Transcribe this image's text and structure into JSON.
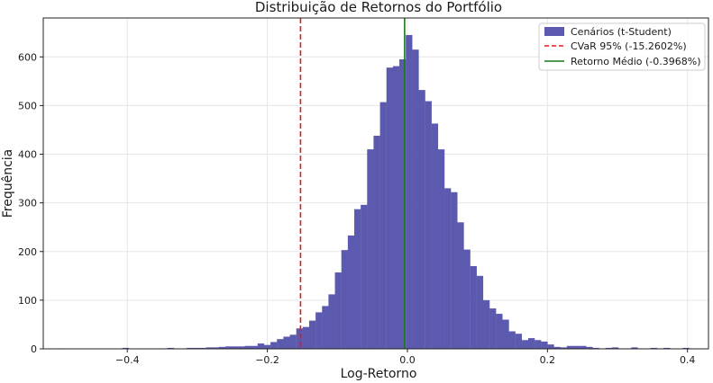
{
  "chart_data": {
    "type": "bar",
    "title": "Distribuição de Retornos do Portfólio",
    "xlabel": "Log-Retorno",
    "ylabel": "Frequência",
    "xlim": [
      -0.52,
      0.43
    ],
    "ylim": [
      0,
      680
    ],
    "xticks": [
      -0.4,
      -0.2,
      0.0,
      0.2,
      0.4
    ],
    "xtick_labels": [
      "−0.4",
      "−0.2",
      "0.0",
      "0.2",
      "0.4"
    ],
    "yticks": [
      0,
      100,
      200,
      300,
      400,
      500,
      600
    ],
    "ytick_labels": [
      "0",
      "100",
      "200",
      "300",
      "400",
      "500",
      "600"
    ],
    "grid": true,
    "legend_position": "top-right",
    "bin_width": 0.0092,
    "bins": [
      {
        "x": -0.4945,
        "y": 1
      },
      {
        "x": -0.4853,
        "y": 0
      },
      {
        "x": -0.4761,
        "y": 0
      },
      {
        "x": -0.4669,
        "y": 0
      },
      {
        "x": -0.4577,
        "y": 0
      },
      {
        "x": -0.4485,
        "y": 0
      },
      {
        "x": -0.4393,
        "y": 0
      },
      {
        "x": -0.4301,
        "y": 0
      },
      {
        "x": -0.4209,
        "y": 0
      },
      {
        "x": -0.4117,
        "y": 0
      },
      {
        "x": -0.4025,
        "y": 2
      },
      {
        "x": -0.3933,
        "y": 0
      },
      {
        "x": -0.3841,
        "y": 0
      },
      {
        "x": -0.3749,
        "y": 1
      },
      {
        "x": -0.3657,
        "y": 0
      },
      {
        "x": -0.3565,
        "y": 1
      },
      {
        "x": -0.3473,
        "y": 1
      },
      {
        "x": -0.3381,
        "y": 2
      },
      {
        "x": -0.3289,
        "y": 1
      },
      {
        "x": -0.3197,
        "y": 1
      },
      {
        "x": -0.3105,
        "y": 2
      },
      {
        "x": -0.3013,
        "y": 2
      },
      {
        "x": -0.2921,
        "y": 2
      },
      {
        "x": -0.2829,
        "y": 3
      },
      {
        "x": -0.2737,
        "y": 3
      },
      {
        "x": -0.2645,
        "y": 4
      },
      {
        "x": -0.2553,
        "y": 5
      },
      {
        "x": -0.2461,
        "y": 5
      },
      {
        "x": -0.2369,
        "y": 5
      },
      {
        "x": -0.2277,
        "y": 6
      },
      {
        "x": -0.2185,
        "y": 6
      },
      {
        "x": -0.2093,
        "y": 11
      },
      {
        "x": -0.2001,
        "y": 8
      },
      {
        "x": -0.1909,
        "y": 14
      },
      {
        "x": -0.1817,
        "y": 20
      },
      {
        "x": -0.1725,
        "y": 25
      },
      {
        "x": -0.1633,
        "y": 29
      },
      {
        "x": -0.1541,
        "y": 42
      },
      {
        "x": -0.1449,
        "y": 45
      },
      {
        "x": -0.1357,
        "y": 58
      },
      {
        "x": -0.1265,
        "y": 75
      },
      {
        "x": -0.1173,
        "y": 88
      },
      {
        "x": -0.1081,
        "y": 112
      },
      {
        "x": -0.0989,
        "y": 157
      },
      {
        "x": -0.0897,
        "y": 203
      },
      {
        "x": -0.0805,
        "y": 233
      },
      {
        "x": -0.0713,
        "y": 287
      },
      {
        "x": -0.0621,
        "y": 296
      },
      {
        "x": -0.0529,
        "y": 410
      },
      {
        "x": -0.0437,
        "y": 438
      },
      {
        "x": -0.0345,
        "y": 507
      },
      {
        "x": -0.0253,
        "y": 578
      },
      {
        "x": -0.0161,
        "y": 581
      },
      {
        "x": -0.0069,
        "y": 595
      },
      {
        "x": 0.0023,
        "y": 645
      },
      {
        "x": 0.0115,
        "y": 615
      },
      {
        "x": 0.0207,
        "y": 532
      },
      {
        "x": 0.0299,
        "y": 509
      },
      {
        "x": 0.0391,
        "y": 463
      },
      {
        "x": 0.0483,
        "y": 410
      },
      {
        "x": 0.0575,
        "y": 330
      },
      {
        "x": 0.0667,
        "y": 322
      },
      {
        "x": 0.0759,
        "y": 260
      },
      {
        "x": 0.0851,
        "y": 204
      },
      {
        "x": 0.0943,
        "y": 170
      },
      {
        "x": 0.1035,
        "y": 150
      },
      {
        "x": 0.1127,
        "y": 100
      },
      {
        "x": 0.1219,
        "y": 83
      },
      {
        "x": 0.1311,
        "y": 72
      },
      {
        "x": 0.1403,
        "y": 60
      },
      {
        "x": 0.1495,
        "y": 36
      },
      {
        "x": 0.1587,
        "y": 31
      },
      {
        "x": 0.1679,
        "y": 18
      },
      {
        "x": 0.1771,
        "y": 22
      },
      {
        "x": 0.1863,
        "y": 18
      },
      {
        "x": 0.1955,
        "y": 15
      },
      {
        "x": 0.2047,
        "y": 9
      },
      {
        "x": 0.2139,
        "y": 4
      },
      {
        "x": 0.2231,
        "y": 3
      },
      {
        "x": 0.2323,
        "y": 6
      },
      {
        "x": 0.2415,
        "y": 6
      },
      {
        "x": 0.2507,
        "y": 6
      },
      {
        "x": 0.2599,
        "y": 4
      },
      {
        "x": 0.2691,
        "y": 2
      },
      {
        "x": 0.2783,
        "y": 1
      },
      {
        "x": 0.2875,
        "y": 2
      },
      {
        "x": 0.2967,
        "y": 3
      },
      {
        "x": 0.3059,
        "y": 1
      },
      {
        "x": 0.3151,
        "y": 1
      },
      {
        "x": 0.3243,
        "y": 3
      },
      {
        "x": 0.3335,
        "y": 1
      },
      {
        "x": 0.3427,
        "y": 0
      },
      {
        "x": 0.3519,
        "y": 2
      },
      {
        "x": 0.3611,
        "y": 1
      },
      {
        "x": 0.3703,
        "y": 2
      },
      {
        "x": 0.3795,
        "y": 0
      },
      {
        "x": 0.3887,
        "y": 0
      },
      {
        "x": 0.3979,
        "y": 2
      },
      {
        "x": 0.4071,
        "y": 1
      }
    ],
    "series": [
      {
        "name": "Cenários (t-Student)",
        "kind": "histogram",
        "color": "#5b5aae"
      }
    ],
    "reference_lines": [
      {
        "name": "CVaR 95% (-15.2602%)",
        "x": -0.152602,
        "color": "#e41a1c",
        "style": "dashed"
      },
      {
        "name": "Retorno Médio (-0.3968%)",
        "x": -0.003968,
        "color": "#1a7a1a",
        "style": "solid"
      }
    ]
  }
}
